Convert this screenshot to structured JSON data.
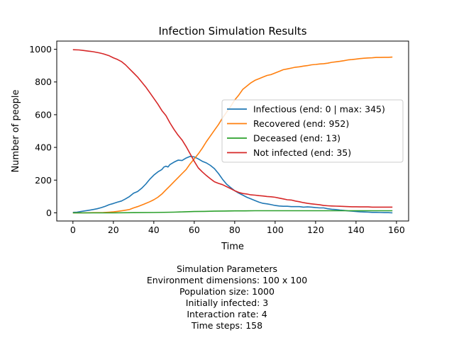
{
  "chart_data": {
    "type": "line",
    "title": "Infection Simulation Results",
    "xlabel": "Time",
    "ylabel": "Number of people",
    "xlim": [
      -8,
      166
    ],
    "ylim": [
      -50,
      1050
    ],
    "xticks": [
      0,
      20,
      40,
      60,
      80,
      100,
      120,
      140,
      160
    ],
    "yticks": [
      0,
      200,
      400,
      600,
      800,
      1000
    ],
    "grid": false,
    "legend_position": "center-right",
    "series": [
      {
        "name": "Infectious (end: 0 | max: 345)",
        "color": "#1f77b4",
        "x": [
          0,
          2,
          4,
          6,
          8,
          10,
          12,
          14,
          16,
          18,
          20,
          22,
          24,
          26,
          28,
          30,
          32,
          34,
          36,
          38,
          40,
          42,
          44,
          45,
          46,
          47,
          48,
          50,
          52,
          54,
          56,
          58,
          60,
          62,
          64,
          66,
          68,
          70,
          72,
          74,
          76,
          78,
          80,
          82,
          84,
          86,
          88,
          90,
          92,
          94,
          96,
          98,
          100,
          102,
          104,
          106,
          108,
          110,
          112,
          114,
          116,
          118,
          120,
          122,
          124,
          126,
          128,
          130,
          132,
          134,
          136,
          138,
          140,
          142,
          144,
          146,
          148,
          150,
          152,
          154,
          156,
          158
        ],
        "y": [
          3,
          4,
          8,
          12,
          16,
          20,
          25,
          32,
          40,
          50,
          57,
          65,
          72,
          85,
          100,
          120,
          130,
          150,
          175,
          205,
          230,
          250,
          265,
          280,
          285,
          280,
          295,
          310,
          322,
          320,
          335,
          345,
          342,
          330,
          315,
          305,
          290,
          270,
          240,
          205,
          175,
          155,
          135,
          120,
          108,
          95,
          85,
          75,
          65,
          58,
          55,
          50,
          45,
          42,
          40,
          40,
          38,
          38,
          38,
          35,
          36,
          35,
          32,
          30,
          30,
          25,
          22,
          20,
          17,
          15,
          12,
          10,
          8,
          6,
          5,
          4,
          3,
          3,
          2,
          1,
          1,
          0
        ]
      },
      {
        "name": "Recovered (end: 952)",
        "color": "#ff7f0e",
        "x": [
          0,
          5,
          10,
          15,
          18,
          20,
          22,
          25,
          28,
          30,
          32,
          35,
          38,
          40,
          42,
          44,
          46,
          48,
          50,
          52,
          54,
          56,
          58,
          60,
          62,
          64,
          66,
          68,
          70,
          72,
          74,
          76,
          78,
          80,
          82,
          84,
          86,
          88,
          90,
          92,
          94,
          96,
          98,
          100,
          102,
          104,
          106,
          108,
          110,
          112,
          114,
          116,
          118,
          120,
          122,
          124,
          126,
          128,
          130,
          132,
          134,
          136,
          138,
          140,
          142,
          144,
          146,
          148,
          150,
          152,
          154,
          156,
          158
        ],
        "y": [
          0,
          0,
          1,
          2,
          4,
          6,
          9,
          14,
          20,
          30,
          38,
          52,
          68,
          80,
          95,
          115,
          140,
          165,
          190,
          215,
          240,
          265,
          300,
          330,
          360,
          395,
          435,
          470,
          505,
          540,
          580,
          615,
          650,
          690,
          720,
          755,
          775,
          795,
          810,
          820,
          830,
          840,
          845,
          855,
          865,
          875,
          880,
          885,
          890,
          893,
          897,
          900,
          905,
          907,
          910,
          912,
          915,
          920,
          923,
          926,
          930,
          935,
          937,
          940,
          943,
          945,
          947,
          948,
          950,
          950,
          951,
          951,
          952
        ]
      },
      {
        "name": "Deceased (end: 13)",
        "color": "#2ca02c",
        "x": [
          0,
          10,
          20,
          30,
          40,
          50,
          55,
          60,
          65,
          70,
          75,
          80,
          85,
          90,
          100,
          110,
          120,
          130,
          140,
          150,
          158
        ],
        "y": [
          0,
          0,
          0,
          1,
          2,
          4,
          6,
          8,
          9,
          10,
          11,
          12,
          12,
          13,
          13,
          13,
          13,
          13,
          13,
          13,
          13
        ]
      },
      {
        "name": "Not infected (end: 35)",
        "color": "#d62728",
        "x": [
          0,
          3,
          5,
          8,
          10,
          13,
          15,
          18,
          20,
          22,
          24,
          26,
          28,
          30,
          32,
          34,
          36,
          38,
          40,
          42,
          44,
          46,
          48,
          50,
          52,
          54,
          56,
          58,
          60,
          62,
          64,
          66,
          68,
          70,
          72,
          74,
          76,
          78,
          80,
          82,
          84,
          86,
          88,
          90,
          92,
          94,
          96,
          98,
          100,
          102,
          104,
          106,
          108,
          110,
          112,
          114,
          116,
          118,
          120,
          122,
          124,
          126,
          128,
          130,
          132,
          134,
          136,
          138,
          140,
          142,
          144,
          146,
          148,
          150,
          152,
          154,
          156,
          158
        ],
        "y": [
          997,
          996,
          993,
          988,
          985,
          978,
          972,
          960,
          948,
          938,
          925,
          905,
          880,
          855,
          830,
          800,
          770,
          735,
          700,
          665,
          625,
          595,
          550,
          510,
          475,
          445,
          405,
          360,
          315,
          275,
          250,
          228,
          208,
          190,
          180,
          172,
          160,
          148,
          135,
          125,
          118,
          115,
          110,
          108,
          105,
          103,
          100,
          98,
          95,
          90,
          85,
          80,
          78,
          72,
          68,
          62,
          58,
          55,
          52,
          49,
          45,
          43,
          42,
          41,
          40,
          39,
          38,
          37,
          37,
          36,
          36,
          36,
          35,
          35,
          35,
          35,
          35,
          35
        ]
      }
    ]
  },
  "parameters": {
    "heading": "Simulation Parameters",
    "lines": [
      "Environment dimensions: 100 x 100",
      "Population size: 1000",
      "Initially infected: 3",
      "Interaction rate: 4",
      "Time steps: 158"
    ]
  }
}
